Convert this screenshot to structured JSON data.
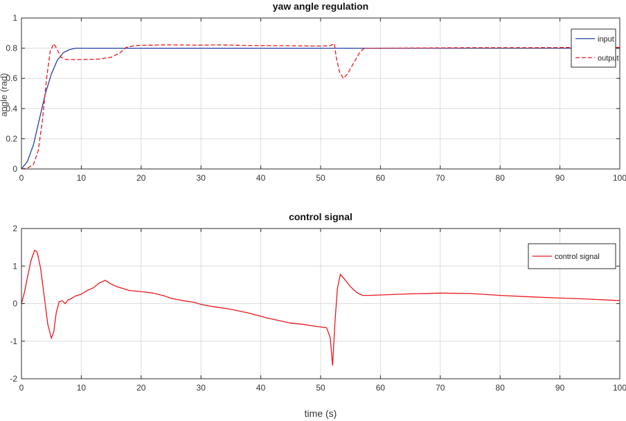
{
  "figure": {
    "xlabel": "time (s)"
  },
  "chart_data": [
    {
      "type": "line",
      "title": "yaw angle regulation",
      "xlabel": "",
      "ylabel": "angle (rad)",
      "xlim": [
        0,
        100
      ],
      "ylim": [
        0,
        1
      ],
      "x_ticks": [
        0,
        10,
        20,
        30,
        40,
        50,
        60,
        70,
        80,
        90,
        100
      ],
      "y_ticks": [
        0,
        0.2,
        0.4,
        0.6,
        0.8,
        1
      ],
      "y_tick_labels": [
        "0",
        "0.2",
        "0.4",
        "0.6",
        "0.8",
        "1"
      ],
      "grid": true,
      "legend_position": "top-right",
      "series": [
        {
          "name": "input",
          "color": "#1f3fa0",
          "style": "solid",
          "points": [
            [
              0,
              0
            ],
            [
              1,
              0.05
            ],
            [
              2,
              0.16
            ],
            [
              3,
              0.33
            ],
            [
              4,
              0.5
            ],
            [
              5,
              0.63
            ],
            [
              6,
              0.72
            ],
            [
              7,
              0.77
            ],
            [
              8,
              0.79
            ],
            [
              9,
              0.8
            ],
            [
              10,
              0.8
            ],
            [
              15,
              0.8
            ],
            [
              20,
              0.8
            ],
            [
              30,
              0.8
            ],
            [
              40,
              0.8
            ],
            [
              50,
              0.8
            ],
            [
              60,
              0.8
            ],
            [
              70,
              0.8
            ],
            [
              80,
              0.8
            ],
            [
              90,
              0.8
            ],
            [
              100,
              0.8
            ]
          ]
        },
        {
          "name": "output",
          "color": "#e8161c",
          "style": "dashed",
          "points": [
            [
              0,
              0
            ],
            [
              1,
              0.005
            ],
            [
              2,
              0.03
            ],
            [
              2.8,
              0.12
            ],
            [
              3.5,
              0.32
            ],
            [
              4.2,
              0.6
            ],
            [
              4.8,
              0.78
            ],
            [
              5.4,
              0.83
            ],
            [
              6,
              0.79
            ],
            [
              6.6,
              0.74
            ],
            [
              7.5,
              0.725
            ],
            [
              10,
              0.725
            ],
            [
              13,
              0.728
            ],
            [
              15,
              0.74
            ],
            [
              16.5,
              0.77
            ],
            [
              17.5,
              0.805
            ],
            [
              19,
              0.818
            ],
            [
              24,
              0.822
            ],
            [
              30,
              0.82
            ],
            [
              33,
              0.822
            ],
            [
              38,
              0.818
            ],
            [
              45,
              0.816
            ],
            [
              49,
              0.814
            ],
            [
              51.5,
              0.815
            ],
            [
              52.3,
              0.83
            ],
            [
              52.6,
              0.74
            ],
            [
              53.2,
              0.64
            ],
            [
              53.8,
              0.6
            ],
            [
              54.5,
              0.63
            ],
            [
              55.5,
              0.7
            ],
            [
              56.5,
              0.77
            ],
            [
              57.3,
              0.8
            ],
            [
              60,
              0.8
            ],
            [
              75,
              0.803
            ],
            [
              85,
              0.803
            ],
            [
              95,
              0.805
            ],
            [
              100,
              0.805
            ]
          ]
        }
      ]
    },
    {
      "type": "line",
      "title": "control signal",
      "xlabel": "time (s)",
      "ylabel": "",
      "xlim": [
        0,
        100
      ],
      "ylim": [
        -2,
        2
      ],
      "x_ticks": [
        0,
        10,
        20,
        30,
        40,
        50,
        60,
        70,
        80,
        90,
        100
      ],
      "y_ticks": [
        -2,
        -1,
        0,
        1,
        2
      ],
      "y_tick_labels": [
        "-2",
        "-1",
        "0",
        "1",
        "2"
      ],
      "grid": true,
      "legend_position": "top-right",
      "series": [
        {
          "name": "control signal",
          "color": "#e8161c",
          "style": "solid",
          "points": [
            [
              0,
              0
            ],
            [
              0.5,
              0.3
            ],
            [
              1,
              0.7
            ],
            [
              1.6,
              1.15
            ],
            [
              2.2,
              1.42
            ],
            [
              2.6,
              1.38
            ],
            [
              3.2,
              0.95
            ],
            [
              3.8,
              0.2
            ],
            [
              4.4,
              -0.55
            ],
            [
              5,
              -0.92
            ],
            [
              5.4,
              -0.75
            ],
            [
              5.8,
              -0.25
            ],
            [
              6.3,
              0.05
            ],
            [
              6.8,
              0.08
            ],
            [
              7.3,
              0.0
            ],
            [
              7.8,
              0.1
            ],
            [
              8.5,
              0.15
            ],
            [
              9,
              0.2
            ],
            [
              10,
              0.25
            ],
            [
              11,
              0.35
            ],
            [
              12,
              0.42
            ],
            [
              13,
              0.55
            ],
            [
              14,
              0.62
            ],
            [
              15,
              0.52
            ],
            [
              16,
              0.45
            ],
            [
              17,
              0.4
            ],
            [
              18,
              0.35
            ],
            [
              20,
              0.32
            ],
            [
              22,
              0.28
            ],
            [
              24,
              0.2
            ],
            [
              25,
              0.14
            ],
            [
              27,
              0.08
            ],
            [
              29,
              0.03
            ],
            [
              30,
              -0.02
            ],
            [
              32,
              -0.08
            ],
            [
              35,
              -0.15
            ],
            [
              38,
              -0.25
            ],
            [
              41,
              -0.38
            ],
            [
              43,
              -0.45
            ],
            [
              45,
              -0.52
            ],
            [
              47,
              -0.55
            ],
            [
              49,
              -0.6
            ],
            [
              51,
              -0.64
            ],
            [
              51.6,
              -0.9
            ],
            [
              52,
              -1.65
            ],
            [
              52.4,
              -0.5
            ],
            [
              52.8,
              0.4
            ],
            [
              53.3,
              0.78
            ],
            [
              54,
              0.65
            ],
            [
              55,
              0.45
            ],
            [
              56,
              0.3
            ],
            [
              57,
              0.22
            ],
            [
              58,
              0.22
            ],
            [
              60,
              0.23
            ],
            [
              65,
              0.26
            ],
            [
              70,
              0.28
            ],
            [
              75,
              0.27
            ],
            [
              78,
              0.24
            ],
            [
              80,
              0.22
            ],
            [
              85,
              0.18
            ],
            [
              90,
              0.15
            ],
            [
              93,
              0.13
            ],
            [
              95,
              0.12
            ],
            [
              100,
              0.08
            ]
          ]
        }
      ]
    }
  ]
}
